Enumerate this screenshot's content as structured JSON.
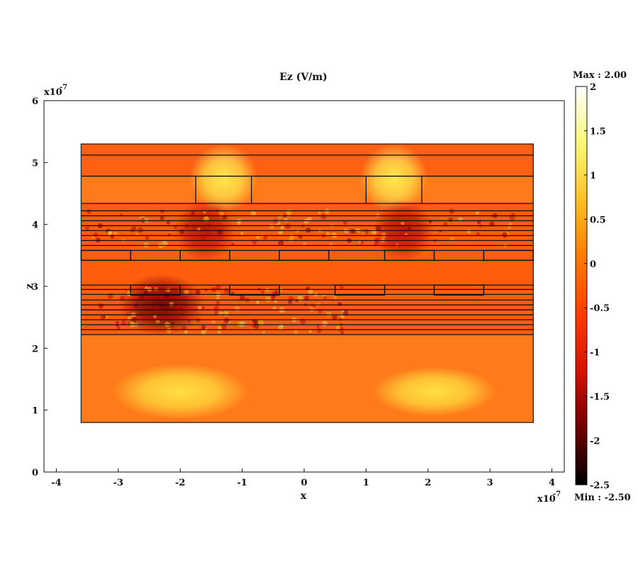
{
  "chart_data": {
    "type": "heatmap",
    "title": "Ez (V/m)",
    "xlabel": "x",
    "ylabel": "z",
    "x_exponent": "x10",
    "x_exponent_power": "-7",
    "y_exponent": "x10",
    "y_exponent_power": "-7",
    "xlim": [
      -4.2,
      4.2
    ],
    "ylim": [
      0,
      6
    ],
    "x_ticks": [
      {
        "value": -4,
        "label": "-4"
      },
      {
        "value": -3,
        "label": "-3"
      },
      {
        "value": -2,
        "label": "-2"
      },
      {
        "value": -1,
        "label": "-1"
      },
      {
        "value": 0,
        "label": "0"
      },
      {
        "value": 1,
        "label": "1"
      },
      {
        "value": 2,
        "label": "2"
      },
      {
        "value": 3,
        "label": "3"
      },
      {
        "value": 4,
        "label": "4"
      }
    ],
    "y_ticks": [
      {
        "value": 0,
        "label": "0"
      },
      {
        "value": 1,
        "label": "1"
      },
      {
        "value": 2,
        "label": "2"
      },
      {
        "value": 3,
        "label": "3"
      },
      {
        "value": 4,
        "label": "4"
      },
      {
        "value": 5,
        "label": "5"
      },
      {
        "value": 6,
        "label": "6"
      }
    ],
    "colorbar": {
      "max_label": "Max : 2.00",
      "min_label": "Min : -2.50",
      "range": [
        -2.5,
        2.0
      ],
      "colors": [
        "#000000",
        "#6e0000",
        "#d81000",
        "#ff3c00",
        "#ff7a00",
        "#ffc020",
        "#f8f878",
        "#ffffff"
      ],
      "ticks": [
        {
          "value": 2,
          "label": "2"
        },
        {
          "value": 1.5,
          "label": "1.5"
        },
        {
          "value": 1,
          "label": "1"
        },
        {
          "value": 0.5,
          "label": "0.5"
        },
        {
          "value": 0,
          "label": "0"
        },
        {
          "value": -0.5,
          "label": "-0.5"
        },
        {
          "value": -1,
          "label": "-1"
        },
        {
          "value": -1.5,
          "label": "-1.5"
        },
        {
          "value": -2,
          "label": "-2"
        },
        {
          "value": -2.5,
          "label": "-2.5"
        }
      ]
    },
    "domain": {
      "x": [
        -3.6,
        3.7
      ],
      "z": [
        0.8,
        5.3
      ]
    },
    "background_field_color": "#ff7a1a",
    "hotspots": [
      {
        "x": -1.3,
        "z": 4.75,
        "rx": 0.55,
        "rz": 0.55,
        "color": "#ffe850"
      },
      {
        "x": 1.45,
        "z": 4.75,
        "rx": 0.55,
        "rz": 0.55,
        "color": "#ffe850"
      },
      {
        "x": -2.0,
        "z": 1.3,
        "rx": 1.1,
        "rz": 0.45,
        "color": "#ffe040"
      },
      {
        "x": 2.1,
        "z": 1.3,
        "rx": 1.0,
        "rz": 0.4,
        "color": "#ffe040"
      },
      {
        "x": -2.3,
        "z": 2.7,
        "rx": 0.7,
        "rz": 0.5,
        "color": "#8a0000"
      },
      {
        "x": 1.6,
        "z": 3.9,
        "rx": 0.5,
        "rz": 0.5,
        "color": "#c01800"
      },
      {
        "x": -1.6,
        "z": 3.9,
        "rx": 0.5,
        "rz": 0.5,
        "color": "#c01800"
      }
    ],
    "layer_lines_z": [
      5.12,
      4.78,
      4.34,
      4.22,
      4.14,
      4.06,
      3.98,
      3.9,
      3.82,
      3.74,
      3.66,
      3.58,
      3.42,
      3.02,
      2.95,
      2.87,
      2.78,
      2.7,
      2.62,
      2.54,
      2.46,
      2.38,
      2.3,
      2.22
    ],
    "top_grating_gaps": [
      [
        -1.75,
        -0.85
      ],
      [
        1.0,
        1.9
      ]
    ],
    "mid_rects_upper": [
      [
        -3.6,
        -2.8
      ],
      [
        -2.0,
        -1.2
      ],
      [
        -0.4,
        0.4
      ],
      [
        1.3,
        2.1
      ],
      [
        2.9,
        3.7
      ]
    ],
    "mid_rects_lower": [
      [
        -2.8,
        -2.0
      ],
      [
        -1.2,
        -0.4
      ],
      [
        0.5,
        1.3
      ],
      [
        2.1,
        2.9
      ]
    ],
    "mid_rect_upper_z": [
      3.42,
      3.58
    ],
    "mid_rect_lower_z": [
      2.86,
      3.02
    ]
  }
}
